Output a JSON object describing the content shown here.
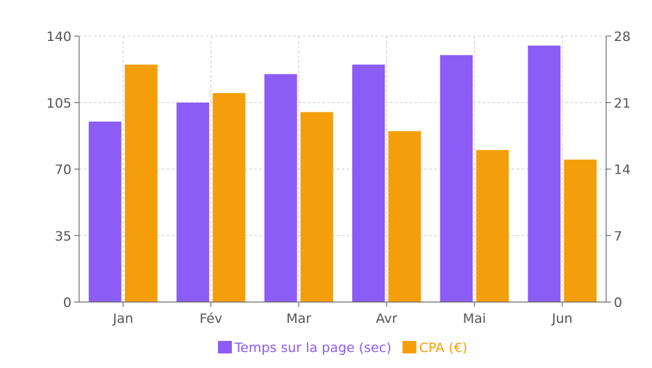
{
  "chart_data": {
    "type": "bar",
    "categories": [
      "Jan",
      "Fév",
      "Mar",
      "Avr",
      "Mai",
      "Jun"
    ],
    "series": [
      {
        "name": "Temps sur la page (sec)",
        "axis": "left",
        "color": "#8b5cf6",
        "values": [
          95,
          105,
          120,
          125,
          130,
          135
        ]
      },
      {
        "name": "CPA (€)",
        "axis": "right",
        "color": "#f59e0b",
        "values": [
          25,
          22,
          20,
          18,
          16,
          15
        ]
      }
    ],
    "y_left": {
      "ylim": [
        0,
        140
      ],
      "ticks": [
        "0",
        "35",
        "70",
        "105",
        "140"
      ]
    },
    "y_right": {
      "ylim": [
        0,
        28
      ],
      "ticks": [
        "0",
        "7",
        "14",
        "21",
        "28"
      ]
    },
    "grid": true,
    "legend_position": "bottom",
    "title": "",
    "xlabel": "",
    "ylabel": ""
  }
}
